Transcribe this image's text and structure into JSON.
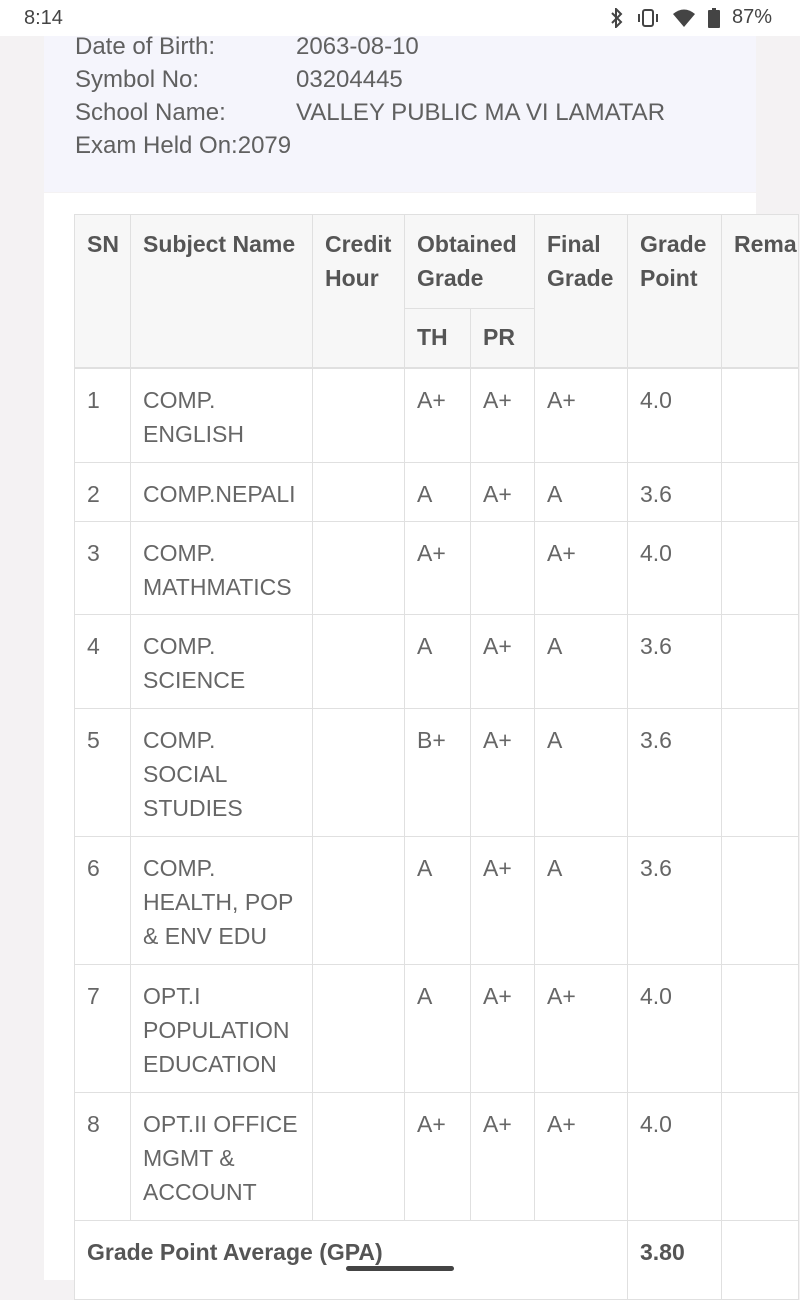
{
  "status": {
    "time": "8:14",
    "battery": "87%"
  },
  "student": {
    "dob_label": "Date of Birth:",
    "dob": "2063-08-10",
    "symbol_label": "Symbol No:",
    "symbol": "03204445",
    "school_label": "School Name:",
    "school": "VALLEY PUBLIC MA VI LAMATAR",
    "exam": "Exam Held On:2079"
  },
  "table": {
    "headers": {
      "sn": "SN",
      "subject": "Subject Name",
      "credit": "Credit Hour",
      "obtained": "Obtained Grade",
      "th": "TH",
      "pr": "PR",
      "final": "Final Grade",
      "point": "Grade Point",
      "remarks": "Rema"
    },
    "rows": [
      {
        "sn": "1",
        "subject": "COMP. ENGLISH",
        "credit": "",
        "th": "A+",
        "pr": "A+",
        "final": "A+",
        "point": "4.0",
        "remarks": ""
      },
      {
        "sn": "2",
        "subject": "COMP.NEPALI",
        "credit": "",
        "th": "A",
        "pr": "A+",
        "final": "A",
        "point": "3.6",
        "remarks": ""
      },
      {
        "sn": "3",
        "subject": "COMP. MATHMATICS",
        "credit": "",
        "th": "A+",
        "pr": "",
        "final": "A+",
        "point": "4.0",
        "remarks": ""
      },
      {
        "sn": "4",
        "subject": "COMP. SCIENCE",
        "credit": "",
        "th": "A",
        "pr": "A+",
        "final": "A",
        "point": "3.6",
        "remarks": ""
      },
      {
        "sn": "5",
        "subject": "COMP. SOCIAL STUDIES",
        "credit": "",
        "th": "B+",
        "pr": "A+",
        "final": "A",
        "point": "3.6",
        "remarks": ""
      },
      {
        "sn": "6",
        "subject": "COMP. HEALTH, POP & ENV EDU",
        "credit": "",
        "th": "A",
        "pr": "A+",
        "final": "A",
        "point": "3.6",
        "remarks": ""
      },
      {
        "sn": "7",
        "subject": "OPT.I POPULATION EDUCATION",
        "credit": "",
        "th": "A",
        "pr": "A+",
        "final": "A+",
        "point": "4.0",
        "remarks": ""
      },
      {
        "sn": "8",
        "subject": "OPT.II OFFICE MGMT & ACCOUNT",
        "credit": "",
        "th": "A+",
        "pr": "A+",
        "final": "A+",
        "point": "4.0",
        "remarks": ""
      }
    ],
    "gpa_label": "Grade Point Average (GPA)",
    "gpa_value": "3.80"
  }
}
